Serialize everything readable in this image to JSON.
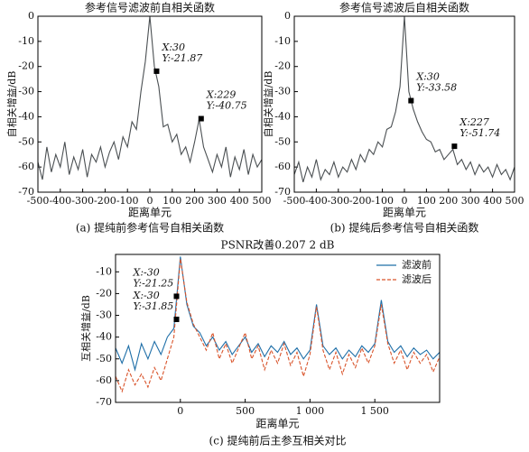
{
  "chart_data": [
    {
      "type": "line",
      "title": "参考信号滤波前自相关函数",
      "x_label": "距离单元",
      "y_label": "自相关增益/dB",
      "caption": "(a) 提纯前参考信号自相关函数",
      "x": [
        -500,
        -480,
        -460,
        -440,
        -420,
        -400,
        -380,
        -360,
        -340,
        -320,
        -300,
        -280,
        -260,
        -240,
        -220,
        -200,
        -180,
        -160,
        -140,
        -120,
        -100,
        -80,
        -60,
        -40,
        -20,
        0,
        20,
        40,
        60,
        80,
        100,
        120,
        140,
        160,
        180,
        200,
        220,
        240,
        260,
        280,
        300,
        320,
        340,
        360,
        380,
        400,
        420,
        440,
        460,
        480,
        500
      ],
      "values": [
        -58,
        -65,
        -52,
        -62,
        -55,
        -60,
        -50,
        -63,
        -56,
        -61,
        -53,
        -64,
        -55,
        -58,
        -52,
        -60,
        -54,
        -50,
        -57,
        -48,
        -52,
        -42,
        -45,
        -30,
        -18,
        0,
        -20,
        -28,
        -44,
        -43,
        -50,
        -47,
        -55,
        -52,
        -58,
        -50,
        -41,
        -52,
        -57,
        -62,
        -55,
        -60,
        -52,
        -64,
        -56,
        -61,
        -53,
        -63,
        -55,
        -60,
        -57
      ],
      "color": "#4a4f52",
      "xlim": [
        -500,
        500
      ],
      "xticks": [
        -500,
        -400,
        -300,
        -200,
        -100,
        0,
        100,
        200,
        300,
        400,
        500
      ],
      "ylim": [
        -70,
        0
      ],
      "yticks": [
        0,
        -10,
        -20,
        -30,
        -40,
        -50,
        -60,
        -70
      ],
      "markers": [
        {
          "x": 30,
          "y": -21.87,
          "label_x": "X:30",
          "label_y": "Y:-21.87"
        },
        {
          "x": 229,
          "y": -40.75,
          "label_x": "X:229",
          "label_y": "Y:-40.75"
        }
      ]
    },
    {
      "type": "line",
      "title": "参考信号滤波后自相关函数",
      "x_label": "距离单元",
      "y_label": "自相关增益/dB",
      "caption": "(b) 提纯后参考信号自相关函数",
      "x": [
        -500,
        -480,
        -460,
        -440,
        -420,
        -400,
        -380,
        -360,
        -340,
        -320,
        -300,
        -280,
        -260,
        -240,
        -220,
        -200,
        -180,
        -160,
        -140,
        -120,
        -100,
        -80,
        -60,
        -40,
        -20,
        0,
        20,
        40,
        60,
        80,
        100,
        120,
        140,
        160,
        180,
        200,
        220,
        240,
        260,
        280,
        300,
        320,
        340,
        360,
        380,
        400,
        420,
        440,
        460,
        480,
        500
      ],
      "values": [
        -63,
        -58,
        -66,
        -60,
        -64,
        -57,
        -65,
        -61,
        -63,
        -58,
        -64,
        -60,
        -62,
        -57,
        -61,
        -55,
        -58,
        -53,
        -55,
        -50,
        -52,
        -45,
        -44,
        -38,
        -28,
        0,
        -30,
        -37,
        -42,
        -46,
        -49,
        -50,
        -54,
        -53,
        -57,
        -55,
        -53,
        -59,
        -57,
        -61,
        -58,
        -63,
        -59,
        -62,
        -60,
        -64,
        -59,
        -63,
        -61,
        -65,
        -60
      ],
      "color": "#4a4f52",
      "xlim": [
        -500,
        500
      ],
      "xticks": [
        -500,
        -400,
        -300,
        -200,
        -100,
        0,
        100,
        200,
        300,
        400,
        500
      ],
      "ylim": [
        -70,
        0
      ],
      "yticks": [
        0,
        -10,
        -20,
        -30,
        -40,
        -50,
        -60,
        -70
      ],
      "markers": [
        {
          "x": 30,
          "y": -33.58,
          "label_x": "X:30",
          "label_y": "Y:-33.58"
        },
        {
          "x": 227,
          "y": -51.74,
          "label_x": "X:227",
          "label_y": "Y:-51.74"
        }
      ]
    },
    {
      "type": "line",
      "title": "PSNR改善0.207 2 dB",
      "x_label": "距离单元",
      "y_label": "互相关增益/dB",
      "caption": "(c) 提纯前后主参互相关对比",
      "x": [
        -500,
        -450,
        -400,
        -350,
        -300,
        -250,
        -200,
        -150,
        -100,
        -50,
        0,
        50,
        100,
        150,
        200,
        250,
        300,
        350,
        400,
        450,
        500,
        550,
        600,
        650,
        700,
        750,
        800,
        850,
        900,
        950,
        1000,
        1050,
        1100,
        1150,
        1200,
        1250,
        1300,
        1350,
        1400,
        1450,
        1500,
        1550,
        1600,
        1650,
        1700,
        1750,
        1800,
        1850,
        1900,
        1950,
        2000
      ],
      "series": [
        {
          "name": "滤波前",
          "color": "#1f6fa8",
          "dash": false,
          "values": [
            -45,
            -52,
            -44,
            -55,
            -43,
            -50,
            -42,
            -48,
            -40,
            -36,
            -3,
            -25,
            -35,
            -38,
            -44,
            -40,
            -46,
            -42,
            -48,
            -44,
            -40,
            -47,
            -43,
            -49,
            -44,
            -47,
            -42,
            -48,
            -45,
            -50,
            -46,
            -25,
            -44,
            -48,
            -45,
            -50,
            -46,
            -49,
            -44,
            -47,
            -43,
            -23,
            -42,
            -47,
            -44,
            -49,
            -45,
            -48,
            -46,
            -50,
            -47
          ]
        },
        {
          "name": "滤波后",
          "color": "#d9542b",
          "dash": true,
          "values": [
            -58,
            -65,
            -55,
            -62,
            -57,
            -63,
            -54,
            -60,
            -50,
            -40,
            -4,
            -24,
            -34,
            -40,
            -46,
            -38,
            -50,
            -43,
            -52,
            -45,
            -38,
            -50,
            -44,
            -55,
            -46,
            -52,
            -43,
            -53,
            -47,
            -58,
            -48,
            -26,
            -46,
            -55,
            -47,
            -57,
            -48,
            -54,
            -45,
            -52,
            -44,
            -25,
            -43,
            -52,
            -46,
            -55,
            -47,
            -52,
            -48,
            -56,
            -49
          ]
        }
      ],
      "xlim": [
        -500,
        2000
      ],
      "xticks": [
        0,
        500,
        {
          "value": 1000,
          "label": "1 000"
        },
        {
          "value": 1500,
          "label": "1 500"
        }
      ],
      "ylim": [
        -70,
        -2
      ],
      "yticks": [
        -10,
        -20,
        -30,
        -40,
        -50,
        -60,
        -70
      ],
      "legend": "upper right",
      "markers": [
        {
          "x": -30,
          "y": -21.25,
          "label_x": "X:-30",
          "label_y": "Y:-21.25"
        },
        {
          "x": -30,
          "y": -31.85,
          "label_x": "X:-30",
          "label_y": "Y:-31.85"
        }
      ]
    }
  ]
}
